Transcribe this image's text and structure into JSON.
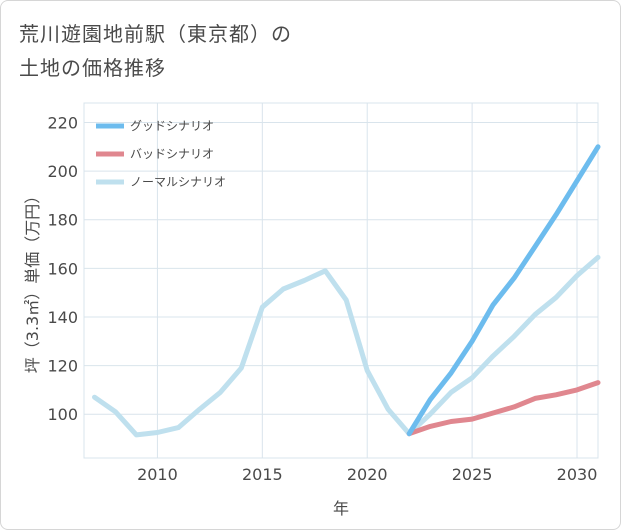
{
  "title_line1": "荒川遊園地前駅（東京都）の",
  "title_line2": "土地の価格推移",
  "chart_data": {
    "type": "line",
    "xlabel": "年",
    "ylabel": "坪（3.3㎡）単価（万円）",
    "xlim": [
      2006.5,
      2031
    ],
    "ylim": [
      82,
      228
    ],
    "xticks": [
      2010,
      2015,
      2020,
      2025,
      2030
    ],
    "yticks": [
      100,
      120,
      140,
      160,
      180,
      200,
      220
    ],
    "grid": true,
    "legend_position": "top-left",
    "series": [
      {
        "name": "グッドシナリオ",
        "color": "#6dbcee",
        "x": [
          2022,
          2023,
          2024,
          2025,
          2026,
          2027,
          2028,
          2029,
          2030,
          2031
        ],
        "y": [
          92,
          106,
          117,
          130,
          145,
          156,
          169,
          182,
          196,
          210
        ]
      },
      {
        "name": "バッドシナリオ",
        "color": "#e0878f",
        "x": [
          2022,
          2023,
          2024,
          2025,
          2026,
          2027,
          2028,
          2029,
          2030,
          2031
        ],
        "y": [
          92,
          95,
          97,
          98,
          100.5,
          103,
          106.5,
          108,
          110,
          113
        ]
      },
      {
        "name": "ノーマルシナリオ",
        "color": "#bfe0ee",
        "x": [
          2007,
          2008,
          2009,
          2010,
          2011,
          2012,
          2013,
          2014,
          2015,
          2016,
          2017,
          2018,
          2019,
          2020,
          2021,
          2022,
          2023,
          2024,
          2025,
          2026,
          2027,
          2028,
          2029,
          2030,
          2031
        ],
        "y": [
          107,
          101,
          91.5,
          92.5,
          94.5,
          102,
          109,
          119,
          144,
          151.5,
          155,
          159,
          147,
          118,
          102,
          92,
          100,
          109,
          115,
          124,
          132,
          141,
          148,
          157,
          164.5
        ]
      }
    ]
  }
}
